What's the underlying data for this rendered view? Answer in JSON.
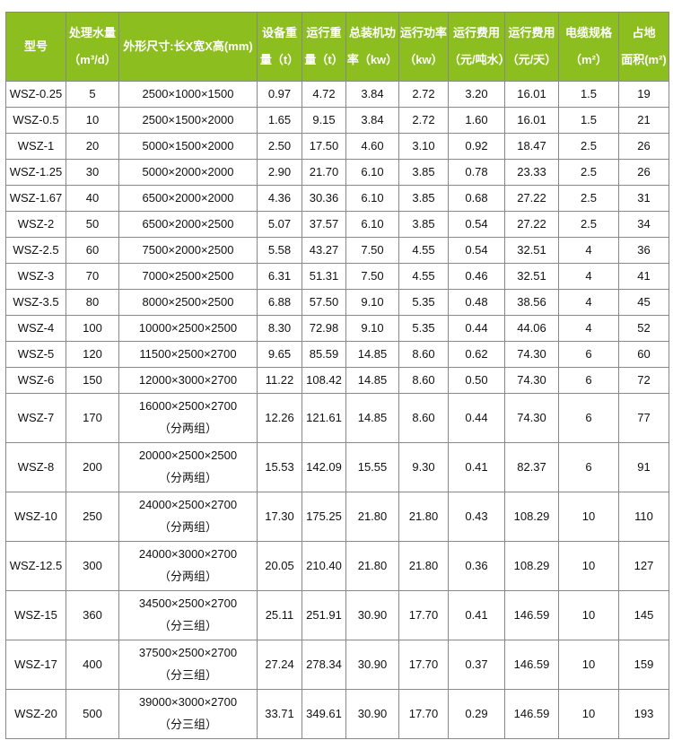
{
  "headers": [
    [
      "型号",
      ""
    ],
    [
      "处理水量",
      "（m³/d）"
    ],
    [
      "外形尺寸:长X宽X高(mm)",
      ""
    ],
    [
      "设备重",
      "量（t）"
    ],
    [
      "运行重",
      "量（t）"
    ],
    [
      "总装机功",
      "率（kw）"
    ],
    [
      "运行功率",
      "（kw）"
    ],
    [
      "运行费用",
      "（元/吨水）"
    ],
    [
      "运行费用",
      "（元/天）"
    ],
    [
      "电缆规格",
      "（m²）"
    ],
    [
      "占地",
      "面积(m²)"
    ]
  ],
  "header_color": "#8cbe1f",
  "rows": [
    [
      "WSZ-0.25",
      "5",
      "2500×1000×1500",
      "",
      "0.97",
      "4.72",
      "3.84",
      "2.72",
      "3.20",
      "16.01",
      "1.5",
      "19"
    ],
    [
      "WSZ-0.5",
      "10",
      "2500×1500×2000",
      "",
      "1.65",
      "9.15",
      "3.84",
      "2.72",
      "1.60",
      "16.01",
      "1.5",
      "21"
    ],
    [
      "WSZ-1",
      "20",
      "5000×1500×2000",
      "",
      "2.50",
      "17.50",
      "4.60",
      "3.10",
      "0.92",
      "18.47",
      "2.5",
      "26"
    ],
    [
      "WSZ-1.25",
      "30",
      "5000×2000×2000",
      "",
      "2.90",
      "21.70",
      "6.10",
      "3.85",
      "0.78",
      "23.33",
      "2.5",
      "26"
    ],
    [
      "WSZ-1.67",
      "40",
      "6500×2000×2000",
      "",
      "4.36",
      "30.36",
      "6.10",
      "3.85",
      "0.68",
      "27.22",
      "2.5",
      "31"
    ],
    [
      "WSZ-2",
      "50",
      "6500×2000×2500",
      "",
      "5.07",
      "37.57",
      "6.10",
      "3.85",
      "0.54",
      "27.22",
      "2.5",
      "34"
    ],
    [
      "WSZ-2.5",
      "60",
      "7500×2000×2500",
      "",
      "5.58",
      "43.27",
      "7.50",
      "4.55",
      "0.54",
      "32.51",
      "4",
      "36"
    ],
    [
      "WSZ-3",
      "70",
      "7000×2500×2500",
      "",
      "6.31",
      "51.31",
      "7.50",
      "4.55",
      "0.46",
      "32.51",
      "4",
      "41"
    ],
    [
      "WSZ-3.5",
      "80",
      "8000×2500×2500",
      "",
      "6.88",
      "57.50",
      "9.10",
      "5.35",
      "0.48",
      "38.56",
      "4",
      "45"
    ],
    [
      "WSZ-4",
      "100",
      "10000×2500×2500",
      "",
      "8.30",
      "72.98",
      "9.10",
      "5.35",
      "0.44",
      "44.06",
      "4",
      "52"
    ],
    [
      "WSZ-5",
      "120",
      "11500×2500×2700",
      "",
      "9.65",
      "85.59",
      "14.85",
      "8.60",
      "0.62",
      "74.30",
      "6",
      "60"
    ],
    [
      "WSZ-6",
      "150",
      "12000×3000×2700",
      "",
      "11.22",
      "108.42",
      "14.85",
      "8.60",
      "0.50",
      "74.30",
      "6",
      "72"
    ],
    [
      "WSZ-7",
      "170",
      "16000×2500×2700",
      "（分两组）",
      "12.26",
      "121.61",
      "14.85",
      "8.60",
      "0.44",
      "74.30",
      "6",
      "77"
    ],
    [
      "WSZ-8",
      "200",
      "20000×2500×2500",
      "（分两组）",
      "15.53",
      "142.09",
      "15.55",
      "9.30",
      "0.41",
      "82.37",
      "6",
      "91"
    ],
    [
      "WSZ-10",
      "250",
      "24000×2500×2700",
      "（分两组）",
      "17.30",
      "175.25",
      "21.80",
      "21.80",
      "0.43",
      "108.29",
      "10",
      "110"
    ],
    [
      "WSZ-12.5",
      "300",
      "24000×3000×2700",
      "（分两组）",
      "20.05",
      "210.40",
      "21.80",
      "21.80",
      "0.36",
      "108.29",
      "10",
      "127"
    ],
    [
      "WSZ-15",
      "360",
      "34500×2500×2700",
      "（分三组）",
      "25.11",
      "251.91",
      "30.90",
      "17.70",
      "0.41",
      "146.59",
      "10",
      "145"
    ],
    [
      "WSZ-17",
      "400",
      "37500×2500×2700",
      "（分三组）",
      "27.24",
      "278.34",
      "30.90",
      "17.70",
      "0.37",
      "146.59",
      "10",
      "159"
    ],
    [
      "WSZ-20",
      "500",
      "39000×3000×2700",
      "（分三组）",
      "33.71",
      "349.61",
      "30.90",
      "17.70",
      "0.29",
      "146.59",
      "10",
      "193"
    ]
  ]
}
